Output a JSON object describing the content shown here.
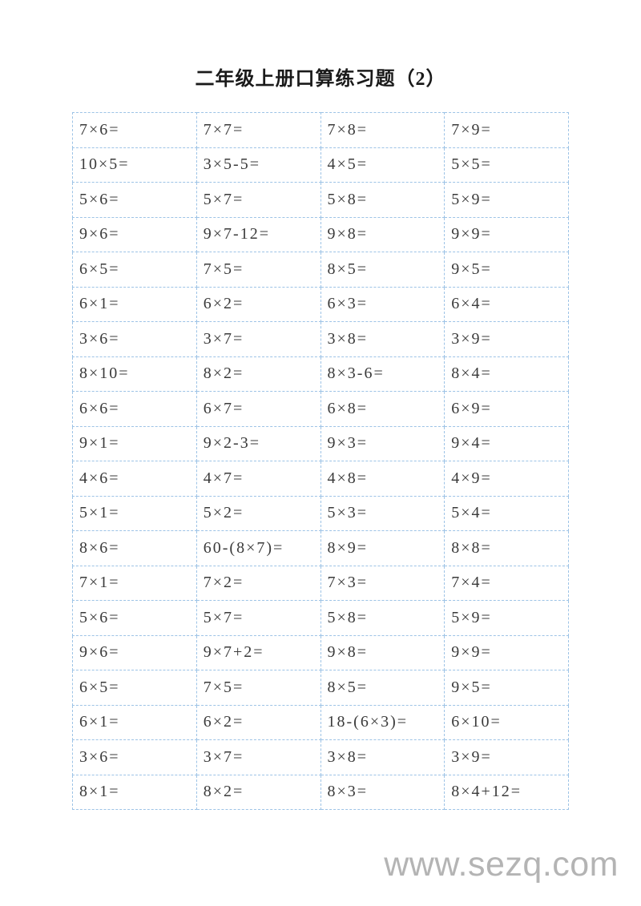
{
  "title": "二年级上册口算练习题（2）",
  "watermark": "www.sezq.com",
  "table": {
    "border_color": "#9dc3e6",
    "text_color": "#3a3a3a",
    "columns": 4,
    "rows": [
      [
        "7×6=",
        "7×7=",
        "7×8=",
        "7×9="
      ],
      [
        "10×5=",
        "3×5-5=",
        "4×5=",
        "5×5="
      ],
      [
        "5×6=",
        "5×7=",
        "5×8=",
        "5×9="
      ],
      [
        "9×6=",
        "9×7-12=",
        "9×8=",
        "9×9="
      ],
      [
        "6×5=",
        "7×5=",
        "8×5=",
        "9×5="
      ],
      [
        "6×1=",
        "6×2=",
        "6×3=",
        "6×4="
      ],
      [
        "3×6=",
        "3×7=",
        "3×8=",
        "3×9="
      ],
      [
        "8×10=",
        "8×2=",
        "8×3-6=",
        "8×4="
      ],
      [
        "6×6=",
        "6×7=",
        "6×8=",
        "6×9="
      ],
      [
        "9×1=",
        "9×2-3=",
        "9×3=",
        "9×4="
      ],
      [
        "4×6=",
        "4×7=",
        "4×8=",
        "4×9="
      ],
      [
        "5×1=",
        "5×2=",
        "5×3=",
        "5×4="
      ],
      [
        "8×6=",
        "60-(8×7)=",
        "8×9=",
        "8×8="
      ],
      [
        "7×1=",
        "7×2=",
        "7×3=",
        "7×4="
      ],
      [
        "5×6=",
        "5×7=",
        "5×8=",
        "5×9="
      ],
      [
        "9×6=",
        "9×7+2=",
        "9×8=",
        "9×9="
      ],
      [
        "6×5=",
        "7×5=",
        "8×5=",
        "9×5="
      ],
      [
        "6×1=",
        "6×2=",
        "18-(6×3)=",
        "6×10="
      ],
      [
        "3×6=",
        "3×7=",
        "3×8=",
        "3×9="
      ],
      [
        "8×1=",
        "8×2=",
        "8×3=",
        "8×4+12="
      ]
    ]
  }
}
